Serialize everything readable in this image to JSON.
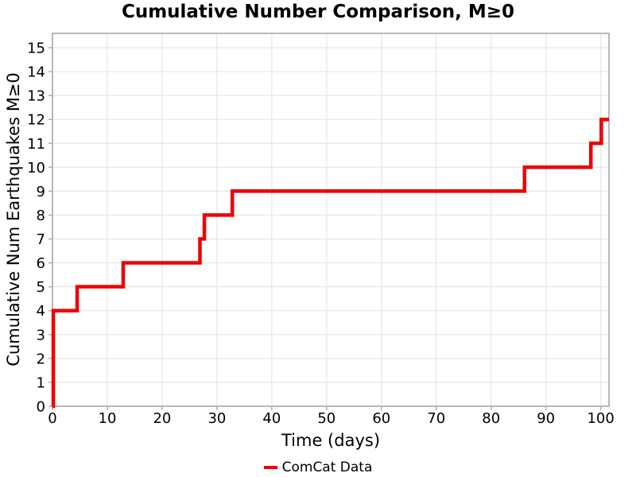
{
  "chart_data": {
    "type": "line",
    "subtype": "step",
    "title": "Cumulative Number Comparison, M≥0",
    "xlabel": "Time (days)",
    "ylabel": "Cumulative Num Earthquakes M≥0",
    "xlim": [
      0,
      101.5
    ],
    "ylim": [
      0,
      15.6
    ],
    "xticks": [
      0,
      10,
      20,
      30,
      40,
      50,
      60,
      70,
      80,
      90,
      100
    ],
    "yticks": [
      0,
      1,
      2,
      3,
      4,
      5,
      6,
      7,
      8,
      9,
      10,
      11,
      12,
      13,
      14,
      15
    ],
    "grid": true,
    "legend_position": "bottom-center",
    "series": [
      {
        "name": "ComCat Data",
        "color": "#ee0000",
        "line_width": 4.5,
        "start": [
          0,
          0
        ],
        "steps": [
          [
            0.15,
            4
          ],
          [
            4.5,
            5
          ],
          [
            12.9,
            6
          ],
          [
            26.9,
            7
          ],
          [
            27.7,
            8
          ],
          [
            32.8,
            9
          ],
          [
            86.1,
            10
          ],
          [
            98.2,
            11
          ],
          [
            100.1,
            12
          ]
        ],
        "end_x": 101.5
      }
    ],
    "colors": {
      "grid": "#e8e8e8",
      "border": "#b0b0b0",
      "tick": "#b0b0b0",
      "text": "#000000"
    }
  }
}
